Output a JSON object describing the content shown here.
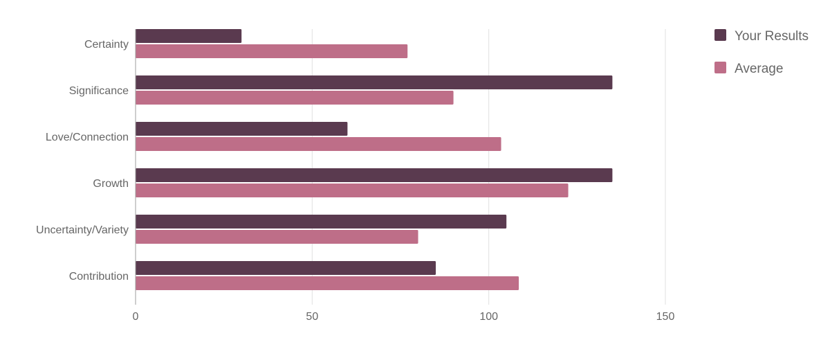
{
  "chart_data": {
    "type": "bar",
    "orientation": "horizontal",
    "categories": [
      "Certainty",
      "Significance",
      "Love/Connection",
      "Growth",
      "Uncertainty/Variety",
      "Contribution"
    ],
    "series": [
      {
        "name": "Your Results",
        "values": [
          30,
          135,
          60,
          135,
          105,
          85
        ],
        "color": "#5a3a4f"
      },
      {
        "name": "Average",
        "values": [
          77,
          90,
          103.5,
          122.5,
          80,
          108.5
        ],
        "color": "#be6e88"
      }
    ],
    "xlim": [
      0,
      150
    ],
    "xticks": [
      0,
      50,
      100,
      150
    ],
    "grid": true,
    "legend": "top-right",
    "title": "",
    "xlabel": "",
    "ylabel": ""
  }
}
